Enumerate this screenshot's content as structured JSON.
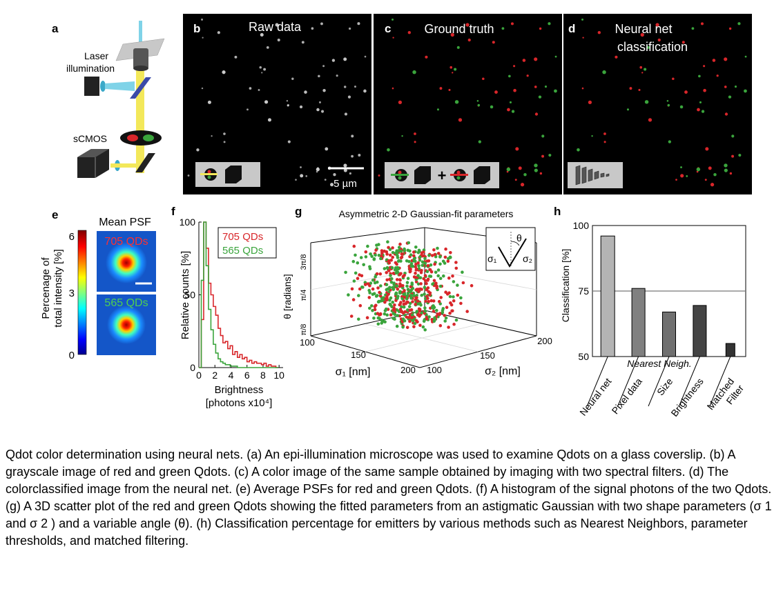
{
  "panels": {
    "a": {
      "letter": "a",
      "laser_label_1": "Laser",
      "laser_label_2": "illumination",
      "camera_label": "sCMOS"
    },
    "b": {
      "letter": "b",
      "title": "Raw data",
      "scalebar": "5 µm"
    },
    "c": {
      "letter": "c",
      "title": "Ground truth"
    },
    "d": {
      "letter": "d",
      "title_line1": "Neural net",
      "title_line2": "classification"
    },
    "e": {
      "letter": "e",
      "title": "Mean PSF",
      "red_label": "705 QDs",
      "green_label": "565 QDs",
      "ylabel_1": "Percenage of",
      "ylabel_2": "total intensity [%]",
      "ticks": [
        "6",
        "3",
        "0"
      ]
    },
    "f": {
      "letter": "f"
    },
    "g": {
      "letter": "g",
      "title": "Asymmetric 2-D Gaussian-fit parameters",
      "theta_label": "θ [radians]",
      "theta_ticks": [
        "3π/8",
        "π/4",
        "π/8"
      ],
      "sigma1_label": "σ₁ [nm]",
      "sigma2_label": "σ₂ [nm]",
      "sigma1_ticks": [
        "100",
        "150",
        "200"
      ],
      "sigma2_ticks": [
        "100",
        "150",
        "200"
      ],
      "inset_theta": "θ",
      "inset_s1": "σ₁",
      "inset_s2": "σ₂"
    },
    "h": {
      "letter": "h"
    }
  },
  "colors": {
    "red": "#d8262a",
    "green": "#3aa43c",
    "gray": "#7a7a7a"
  },
  "chart_data": [
    {
      "type": "line",
      "panel": "f",
      "xlabel": "Brightness [photons x10⁴]",
      "ylabel": "Relative counts [%]",
      "xlim": [
        0,
        10.5
      ],
      "ylim": [
        0,
        100
      ],
      "x_ticks": [
        "0",
        "2",
        "4",
        "6",
        "8",
        "10"
      ],
      "y_ticks": [
        "0",
        "50",
        "100"
      ],
      "x": [
        0.0,
        0.3,
        0.6,
        0.9,
        1.2,
        1.5,
        1.8,
        2.1,
        2.4,
        2.7,
        3.0,
        3.3,
        3.6,
        3.9,
        4.2,
        4.5,
        4.8,
        5.1,
        5.4,
        5.7,
        6.0,
        6.3,
        6.6,
        6.9,
        7.2,
        7.5,
        7.8,
        8.1,
        8.4,
        8.7,
        9.0,
        9.3,
        9.6
      ],
      "series": [
        {
          "name": "705 QDs",
          "color": "#d8262a",
          "values": [
            0,
            33,
            100,
            82,
            58,
            50,
            42,
            36,
            27,
            22,
            17,
            18,
            13,
            15,
            9,
            11,
            7,
            9,
            6,
            7,
            4,
            5,
            3,
            4,
            3,
            3,
            2,
            3,
            1,
            2,
            1,
            1,
            0
          ]
        },
        {
          "name": "565 QDs",
          "color": "#3aa43c",
          "values": [
            0,
            60,
            100,
            70,
            40,
            26,
            16,
            10,
            6,
            4,
            3,
            2,
            2,
            1,
            1,
            1,
            0,
            0,
            0,
            0,
            0,
            0,
            0,
            0,
            0,
            0,
            0,
            0,
            0,
            0,
            0,
            0,
            0
          ]
        }
      ]
    },
    {
      "type": "bar",
      "panel": "h",
      "ylabel": "Classification [%]",
      "ylim": [
        50,
        100
      ],
      "y_ticks": [
        "100",
        "75",
        "50"
      ],
      "reference_line": 75,
      "annotation": "Nearest Neigh.",
      "categories": [
        "Neural net",
        "Pixel data",
        "Size",
        "Brightness",
        "Matched\nFilter"
      ],
      "values": [
        96,
        76,
        67,
        69.5,
        55
      ],
      "bar_colors": [
        "#b4b4b4",
        "#808080",
        "#707070",
        "#444444",
        "#333333"
      ]
    }
  ],
  "caption": "Qdot color determination using neural nets. (a) An epi-illumination microscope was used to examine Qdots on a glass coverslip. (b) A grayscale image of red and green Qdots. (c) A color image of the same sample obtained by imaging with two spectral filters. (d) The colorclassified image from the neural net. (e) Average PSFs for red and green Qdots. (f) A histogram of the signal photons of the two Qdots. (g) A 3D scatter plot of the red and green Qdots showing the fitted parameters from an astigmatic Gaussian with two shape parameters (σ 1 and σ 2 ) and a variable angle (θ). (h) Classification percentage for emitters by various methods such as Nearest Neighbors, parameter thresholds, and matched filtering."
}
